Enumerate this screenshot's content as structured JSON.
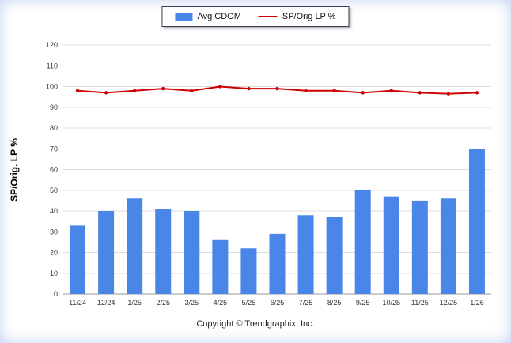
{
  "chart_data": {
    "type": "bar",
    "subtype": "combo-bar-line",
    "categories": [
      "11/24",
      "12/24",
      "1/25",
      "2/25",
      "3/25",
      "4/25",
      "5/25",
      "6/25",
      "7/25",
      "8/25",
      "9/25",
      "10/25",
      "11/25",
      "12/25",
      "1/26"
    ],
    "series": [
      {
        "name": "Avg CDOM",
        "type": "bar",
        "color": "#4a86e8",
        "values": [
          33,
          40,
          46,
          41,
          40,
          26,
          22,
          29,
          38,
          37,
          50,
          47,
          45,
          46,
          70
        ]
      },
      {
        "name": "SP/Orig LP %",
        "type": "line",
        "color": "#cc0000",
        "values": [
          98,
          97,
          98,
          99,
          98,
          100,
          99,
          99,
          98,
          98,
          97,
          98,
          97,
          96.5,
          97
        ]
      }
    ],
    "title": "",
    "xlabel": "",
    "ylabel": "SP/Orig. LP %",
    "ylim": [
      0,
      120
    ],
    "ytick_step": 10,
    "grid": true,
    "legend_position": "top-center",
    "gridline_color": "#dcdcdc",
    "axis_line_color": "#999999",
    "tick_label_color": "#333333"
  },
  "footer": {
    "copyright": "Copyright © Trendgraphix, Inc."
  }
}
